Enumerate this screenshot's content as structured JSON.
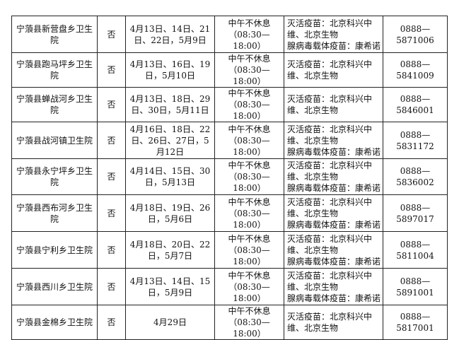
{
  "rows": [
    {
      "name": "宁蒗县新营盘乡卫生院",
      "appointment": "否",
      "dates": "4月13日、14日、21日、22日，5月9日",
      "hours_note": "中午不休息",
      "hours": "（08:30—18:00）",
      "vaccine_inactivated": "灭活疫苗：北京科兴中维、北京生物",
      "vaccine_adeno": "腺病毒载体疫苗：康希诺",
      "phone": "0888—5871006"
    },
    {
      "name": "宁蒗县跑马坪乡卫生院",
      "appointment": "否",
      "dates": "4月13日、16日、19日，5月10日",
      "hours_note": "中午不休息",
      "hours": "（08:30—18:00）",
      "vaccine_inactivated": "灭活疫苗：北京科兴中维、北京生物",
      "vaccine_adeno": "",
      "phone": "0888—5841009"
    },
    {
      "name": "宁蒗县蝉战河乡卫生院",
      "appointment": "否",
      "dates": "4月13日、18日、29日、30日，5月11日",
      "hours_note": "中午不休息",
      "hours": "（08:30—18:00）",
      "vaccine_inactivated": "灭活疫苗：北京科兴中维、北京生物",
      "vaccine_adeno": "",
      "phone": "0888—5846001"
    },
    {
      "name": "宁蒗县战河镇卫生院",
      "appointment": "否",
      "dates": "4月16日、18日、22日、26日、27日，5月12日",
      "hours_note": "中午不休息",
      "hours": "（08:30—18:00）",
      "vaccine_inactivated": "灭活疫苗：北京科兴中维、北京生物",
      "vaccine_adeno": "腺病毒载体疫苗：康希诺",
      "phone": "0888—5831172"
    },
    {
      "name": "宁蒗县永宁坪乡卫生院",
      "appointment": "否",
      "dates": "4月14日、15日、30日，5月13日",
      "hours_note": "中午不休息",
      "hours": "（08:30—18:00）",
      "vaccine_inactivated": "灭活疫苗：北京科兴中维、北京生物",
      "vaccine_adeno": "腺病毒载体疫苗：康希诺",
      "phone": "0888—5836002"
    },
    {
      "name": "宁蒗县西布河乡卫生院",
      "appointment": "否",
      "dates": "4月18日、19日、26日，5月6日",
      "hours_note": "中午不休息",
      "hours": "（08:30—18:00）",
      "vaccine_inactivated": "灭活疫苗：北京科兴中维、北京生物",
      "vaccine_adeno": "腺病毒载体疫苗：康希诺",
      "phone": "0888—5897017"
    },
    {
      "name": "宁蒗县宁利乡卫生院",
      "appointment": "否",
      "dates": "4月18日、20日、22日，5月7日",
      "hours_note": "中午不休息",
      "hours": "（08:30—18:00）",
      "vaccine_inactivated": "灭活疫苗：北京科兴中维、北京生物",
      "vaccine_adeno": "腺病毒载体疫苗：康希诺",
      "phone": "0888—5811004"
    },
    {
      "name": "宁蒗县西川乡卫生院",
      "appointment": "否",
      "dates": "4月13日、14日、15日，5月9日",
      "hours_note": "中午不休息",
      "hours": "（08:30—18:00）",
      "vaccine_inactivated": "灭活疫苗：北京科兴中维、北京生物",
      "vaccine_adeno": "腺病毒载体疫苗：康希诺",
      "phone": "0888—5891001"
    },
    {
      "name": "宁蒗县金棉乡卫生院",
      "appointment": "否",
      "dates": "4月29日",
      "hours_note": "中午不休息",
      "hours": "（08:30—18:00）",
      "vaccine_inactivated": "灭活疫苗：北京科兴中维、北京生物",
      "vaccine_adeno": "",
      "phone": "0888—5817001"
    }
  ]
}
